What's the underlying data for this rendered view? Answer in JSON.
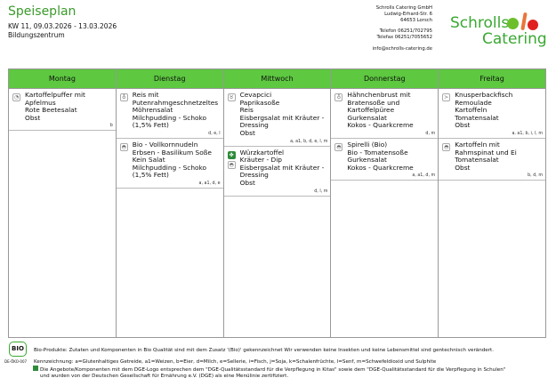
{
  "header": {
    "title": "Speiseplan",
    "week": "KW 11, 09.03.2026 - 13.03.2026",
    "location": "Bildungszentrum"
  },
  "company": {
    "name": "Schrolls Catering GmbH",
    "street": "Ludwig-Erhard-Str. 6",
    "city": "64653 Lorsch",
    "phone": "Telefon 06251/702795",
    "fax": "Telefax 06251/7055652",
    "email": "info@schrolls-catering.de",
    "logo_line1": "Schrolls",
    "logo_line2": "Catering"
  },
  "colors": {
    "header_green": "#5dc840",
    "title_green": "#3a9a2a"
  },
  "days": [
    {
      "name": "Montag",
      "meals": [
        {
          "icons": [
            "pork-icon"
          ],
          "lines": [
            "Kartoffelpuffer mit",
            "Apfelmus",
            "Rote Beetesalat",
            "Obst"
          ],
          "allergens": "b"
        }
      ]
    },
    {
      "name": "Dienstag",
      "meals": [
        {
          "icons": [
            "poultry-icon"
          ],
          "lines": [
            "Reis mit",
            "Putenrahmgeschnetzeltes",
            "Möhrensalat",
            "Milchpudding - Schoko",
            "(1,5% Fett)"
          ],
          "allergens": "d, e, l"
        },
        {
          "icons": [
            "vegetarian-icon"
          ],
          "lines": [
            "Bio  -  Vollkornnudeln",
            "Erbsen - Basilikum Soße",
            "Kein Salat",
            "Milchpudding - Schoko",
            "(1,5% Fett)"
          ],
          "allergens": "a, a1, d, e"
        }
      ]
    },
    {
      "name": "Mittwoch",
      "meals": [
        {
          "icons": [
            "beef-icon"
          ],
          "lines": [
            "Cevapcici",
            "Paprikasoße",
            "Reis",
            "Eisbergsalat mit Kräuter  -",
            "Dressing",
            "Obst"
          ],
          "allergens": "a, a1, b, d, e, l, m"
        },
        {
          "icons": [
            "dge-icon",
            "vegetarian-icon"
          ],
          "lines": [
            "Würzkartoffel",
            "Kräuter  -  Dip",
            "Eisbergsalat mit Kräuter  -",
            "Dressing",
            "Obst"
          ],
          "allergens": "d, l, m"
        }
      ]
    },
    {
      "name": "Donnerstag",
      "meals": [
        {
          "icons": [
            "poultry-icon"
          ],
          "lines": [
            "Hähnchenbrust mit",
            "Bratensoße und",
            "Kartoffelpüree",
            "Gurkensalat",
            "Kokos - Quarkcreme"
          ],
          "allergens": "d, m"
        },
        {
          "icons": [
            "vegetarian-icon"
          ],
          "lines": [
            "Spirelli (Bio)",
            "Bio  -  Tomatensoße",
            "Gurkensalat",
            "Kokos - Quarkcreme"
          ],
          "allergens": "a, a1, d, m"
        }
      ]
    },
    {
      "name": "Freitag",
      "meals": [
        {
          "icons": [
            "fish-icon"
          ],
          "lines": [
            "Knusperbackfisch",
            "Remoulade",
            "Kartoffeln",
            "Tomatensalat",
            "Obst"
          ],
          "allergens": "a, a1, b, i, l, m"
        },
        {
          "icons": [
            "vegetarian-icon"
          ],
          "lines": [
            "Kartoffeln mit",
            "Rahmspinat und Ei",
            "Tomatensalat",
            "Obst"
          ],
          "allergens": "b, d, m"
        }
      ]
    }
  ],
  "footer": {
    "bio_logo": "BIO",
    "bio_code": "DE-ÖKO-007",
    "bio_text": "Bio-Produkte: Zutaten und Komponenten in Bio Qualität sind mit dem Zusatz '(Bio)' gekennzeichnet Wir verwenden keine Insekten und keine Lebensmittel sind gentechnisch verändert.",
    "allergen_legend": "Kennzeichnung: a=Glutenhaltiges Getreide, a1=Weizen, b=Eier, d=Milch, e=Sellerie, i=Fisch, j=Soja, k=Schalenfrüchte, l=Senf, m=Schwefeldioxid und Sulphite",
    "dge_line1": "Die Angebote/Komponenten mit dem DGE-Logo entsprechen dem \"DGE-Qualitätsstandard für die Verpflegung in Kitas\" sowie dem \"DGE-Qualitätsstandard für die Verpflegung in Schulen\"",
    "dge_line2": "und wurden von der Deutschen Gesellschaft für Ernährung e.V. (DGE) als eine Menülinie zertifiziert."
  }
}
